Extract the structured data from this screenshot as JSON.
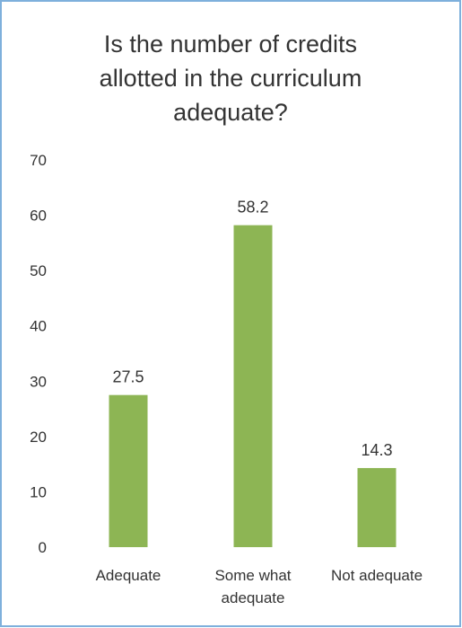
{
  "chart_data": {
    "type": "bar",
    "title": "Is the number of credits\nallotted in the curriculum\nadequate?",
    "categories": [
      "Adequate",
      "Some what adequate",
      "Not adequate"
    ],
    "category_lines": [
      [
        "Adequate"
      ],
      [
        "Some what",
        "adequate"
      ],
      [
        "Not adequate"
      ]
    ],
    "values": [
      27.5,
      58.2,
      14.3
    ],
    "data_labels": [
      "27.5",
      "58.2",
      "14.3"
    ],
    "ylim": [
      0,
      70
    ],
    "yticks": [
      "0",
      "10",
      "20",
      "30",
      "40",
      "50",
      "60",
      "70"
    ],
    "bar_color": "#8db554",
    "grid": false,
    "legend": "none"
  }
}
